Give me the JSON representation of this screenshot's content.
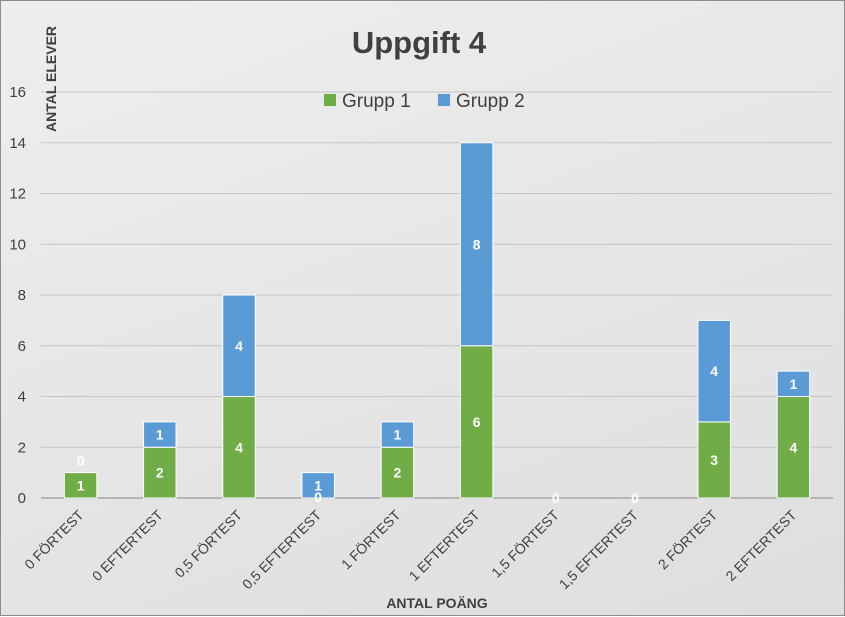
{
  "chart_data": {
    "type": "bar",
    "stacked": true,
    "title": "Uppgift 4",
    "xlabel": "ANTAL POÄNG",
    "ylabel": "ANTAL ELEVER",
    "categories": [
      "0 FÖRTEST",
      "0 EFTERTEST",
      "0,5 FÖRTEST",
      "0,5 EFTERTEST",
      "1 FÖRTEST",
      "1 EFTERTEST",
      "1,5 FÖRTEST",
      "1,5 EFTERTEST",
      "2 FÖRTEST",
      "2 EFTERTEST"
    ],
    "series": [
      {
        "name": "Grupp 1",
        "color": "#70ad47",
        "values": [
          1,
          2,
          4,
          0,
          2,
          6,
          0,
          0,
          3,
          4
        ]
      },
      {
        "name": "Grupp 2",
        "color": "#5b9bd5",
        "values": [
          0,
          1,
          4,
          1,
          1,
          8,
          0,
          0,
          4,
          1
        ]
      }
    ],
    "ylim": [
      0,
      16
    ],
    "yticks": [
      0,
      2,
      4,
      6,
      8,
      10,
      12,
      14,
      16
    ],
    "grid": true,
    "legend_position": "top"
  }
}
